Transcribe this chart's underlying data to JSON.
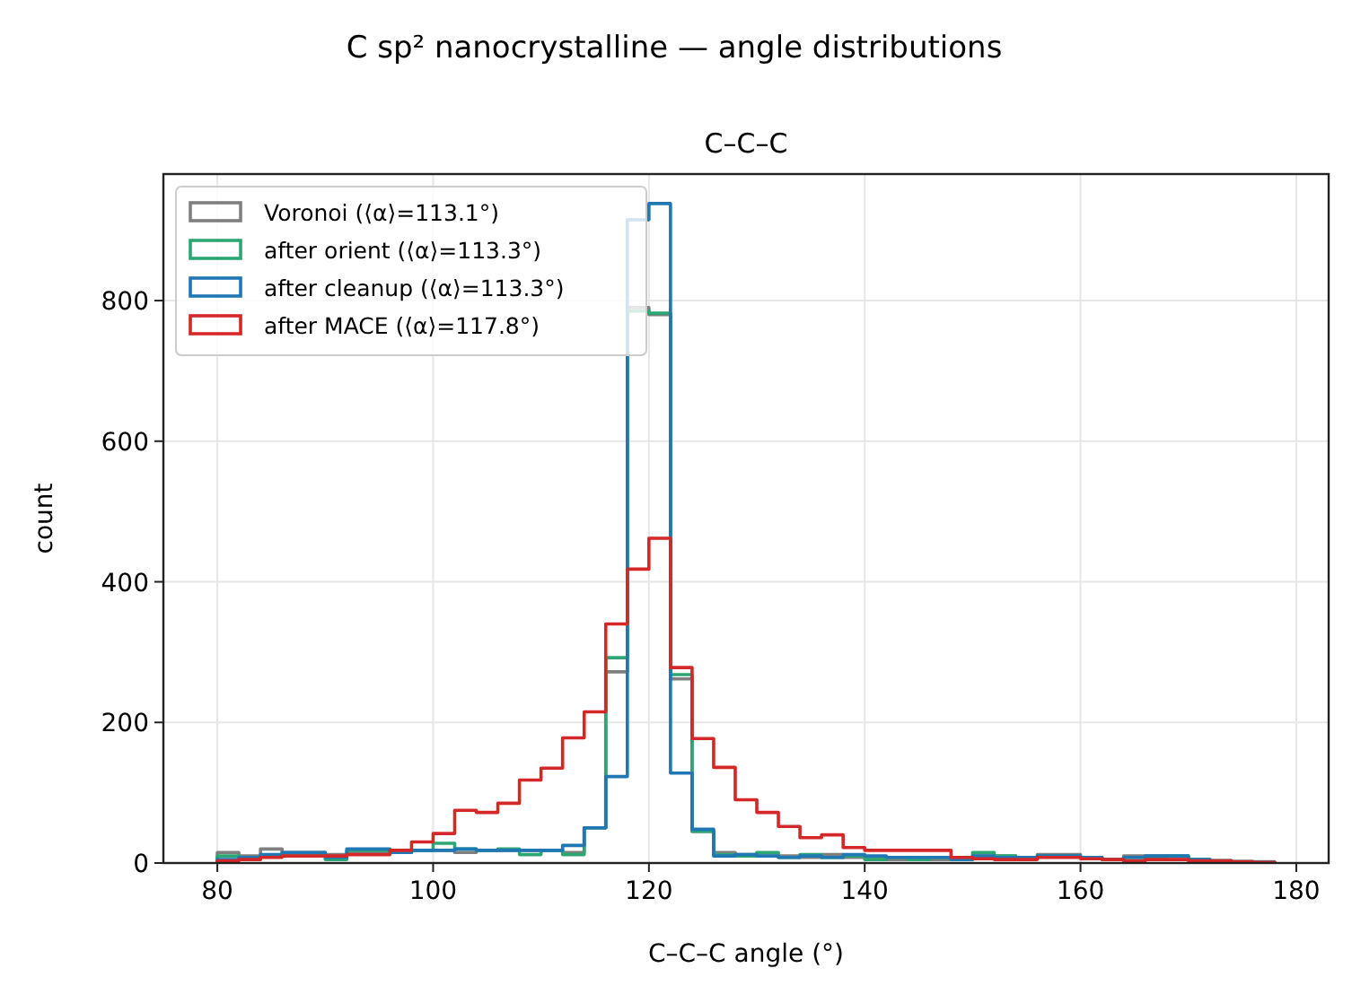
{
  "chart_data": {
    "type": "histogram",
    "title": "C sp² nanocrystalline — angle distributions",
    "subtitle": "C–C–C",
    "xlabel": "C–C–C angle (°)",
    "ylabel": "count",
    "bins": [
      80,
      82,
      84,
      86,
      88,
      90,
      92,
      94,
      96,
      98,
      100,
      102,
      104,
      106,
      108,
      110,
      112,
      114,
      116,
      118,
      120,
      122,
      124,
      126,
      128,
      130,
      132,
      134,
      136,
      138,
      140,
      142,
      144,
      146,
      148,
      150,
      152,
      154,
      156,
      158,
      160,
      162,
      164,
      166,
      168,
      170,
      172,
      174,
      176,
      178
    ],
    "series": [
      {
        "name": "Voronoi (⟨α⟩=113.1°)",
        "color": "#7f7f7f",
        "values": [
          15,
          10,
          20,
          15,
          15,
          12,
          15,
          15,
          15,
          18,
          18,
          15,
          18,
          18,
          18,
          18,
          15,
          50,
          272,
          790,
          780,
          262,
          45,
          15,
          12,
          10,
          10,
          8,
          12,
          8,
          8,
          5,
          5,
          5,
          5,
          10,
          10,
          8,
          12,
          12,
          8,
          5,
          10,
          10,
          5,
          5,
          3,
          2,
          2
        ]
      },
      {
        "name": "after orient (⟨α⟩=113.3°)",
        "color": "#2ca673",
        "values": [
          10,
          5,
          10,
          12,
          12,
          5,
          18,
          18,
          15,
          18,
          28,
          20,
          18,
          20,
          12,
          18,
          12,
          50,
          292,
          785,
          782,
          268,
          45,
          12,
          10,
          15,
          8,
          12,
          8,
          10,
          5,
          8,
          5,
          8,
          5,
          15,
          10,
          8,
          10,
          10,
          8,
          5,
          8,
          8,
          10,
          5,
          3,
          2,
          1
        ]
      },
      {
        "name": "after cleanup (⟨α⟩=113.3°)",
        "color": "#1f77b4",
        "values": [
          5,
          8,
          12,
          15,
          15,
          8,
          20,
          20,
          15,
          18,
          18,
          20,
          18,
          18,
          18,
          18,
          25,
          50,
          123,
          915,
          938,
          128,
          48,
          10,
          12,
          10,
          8,
          10,
          8,
          12,
          10,
          8,
          8,
          8,
          5,
          10,
          8,
          8,
          10,
          10,
          8,
          5,
          8,
          10,
          10,
          5,
          3,
          2,
          1
        ]
      },
      {
        "name": "after MACE (⟨α⟩=117.8°)",
        "color": "#d62728",
        "values": [
          3,
          5,
          8,
          10,
          10,
          10,
          12,
          12,
          18,
          30,
          42,
          75,
          72,
          85,
          118,
          135,
          178,
          215,
          340,
          418,
          462,
          278,
          177,
          136,
          90,
          72,
          52,
          36,
          40,
          22,
          18,
          18,
          18,
          18,
          8,
          6,
          5,
          5,
          8,
          8,
          6,
          5,
          3,
          5,
          5,
          3,
          3,
          2,
          1
        ]
      }
    ],
    "xlim": [
      75,
      183
    ],
    "ylim": [
      0,
      980
    ],
    "xticks": [
      80,
      100,
      120,
      140,
      160,
      180
    ],
    "yticks": [
      0,
      200,
      400,
      600,
      800
    ],
    "grid": true,
    "legend": "top left"
  }
}
